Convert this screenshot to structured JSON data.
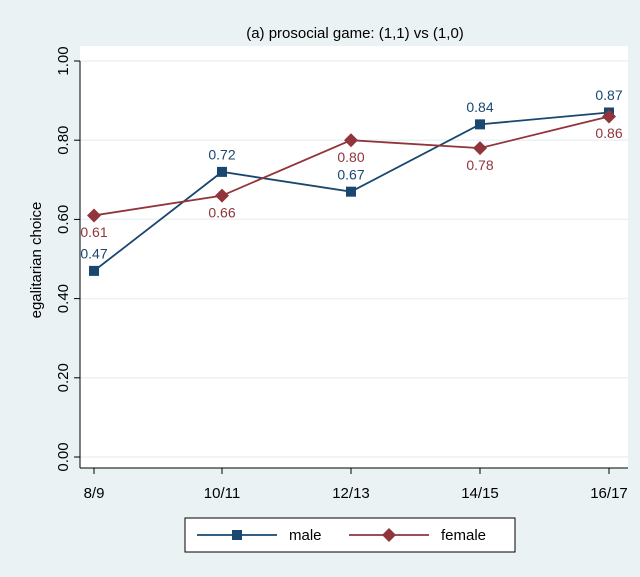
{
  "chart_data": {
    "type": "line",
    "title": "(a) prosocial game: (1,1) vs (1,0)",
    "y_label": "egalitarian choice",
    "categories": [
      "8/9",
      "10/11",
      "12/13",
      "14/15",
      "16/17"
    ],
    "series": [
      {
        "name": "male",
        "color": "#1a476f",
        "marker": "square",
        "values": [
          0.47,
          0.72,
          0.67,
          0.84,
          0.87
        ],
        "value_labels": [
          "0.47",
          "0.72",
          "0.67",
          "0.84",
          "0.87"
        ]
      },
      {
        "name": "female",
        "color": "#90353b",
        "marker": "diamond",
        "values": [
          0.61,
          0.66,
          0.8,
          0.78,
          0.86
        ],
        "value_labels": [
          "0.61",
          "0.66",
          "0.80",
          "0.78",
          "0.86"
        ]
      }
    ],
    "ylim": [
      0,
      1
    ],
    "yticks": [
      {
        "value": 0,
        "label": "0.00"
      },
      {
        "value": 0.2,
        "label": "0.20"
      },
      {
        "value": 0.4,
        "label": "0.40"
      },
      {
        "value": 0.6,
        "label": "0.60"
      },
      {
        "value": 0.8,
        "label": "0.80"
      },
      {
        "value": 1,
        "label": "1.00"
      }
    ],
    "grid": true,
    "legend": "bottom"
  }
}
